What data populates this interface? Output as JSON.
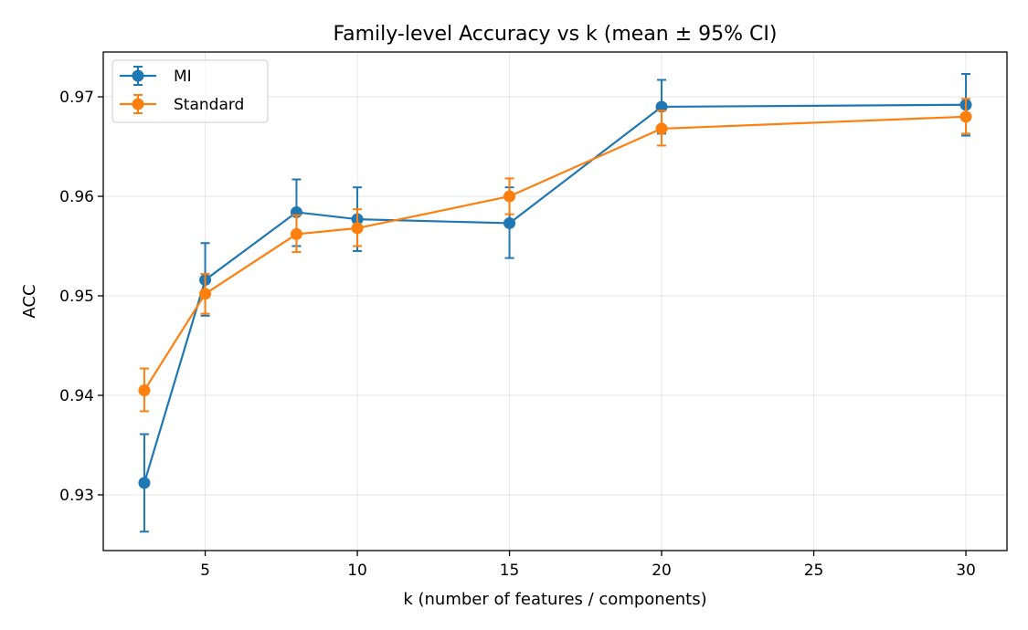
{
  "chart_data": {
    "type": "line",
    "title": "Family-level Accuracy vs k (mean ± 95% CI)",
    "xlabel": "k (number of features / components)",
    "ylabel": "ACC",
    "x": [
      3,
      5,
      8,
      10,
      15,
      20,
      30
    ],
    "xlim": [
      1.65,
      31.35
    ],
    "ylim": [
      0.9244,
      0.9745
    ],
    "xticks": [
      5,
      10,
      15,
      20,
      25,
      30
    ],
    "yticks": [
      0.93,
      0.94,
      0.95,
      0.96,
      0.97
    ],
    "grid": true,
    "legend_position": "top-left",
    "series": [
      {
        "name": "MI",
        "color": "#1f77b4",
        "values": [
          0.9312,
          0.9516,
          0.9584,
          0.9577,
          0.9573,
          0.969,
          0.9692
        ],
        "ci_low": [
          0.9263,
          0.948,
          0.955,
          0.9545,
          0.9538,
          0.9663,
          0.9661
        ],
        "ci_high": [
          0.9361,
          0.9553,
          0.9617,
          0.9609,
          0.9609,
          0.9717,
          0.9723
        ]
      },
      {
        "name": "Standard",
        "color": "#ff7f0e",
        "values": [
          0.9405,
          0.9502,
          0.9562,
          0.9568,
          0.96,
          0.9668,
          0.968
        ],
        "ci_low": [
          0.9384,
          0.9482,
          0.9544,
          0.955,
          0.9582,
          0.9651,
          0.9663
        ],
        "ci_high": [
          0.9427,
          0.9522,
          0.9581,
          0.9587,
          0.9618,
          0.9686,
          0.9698
        ]
      }
    ]
  }
}
